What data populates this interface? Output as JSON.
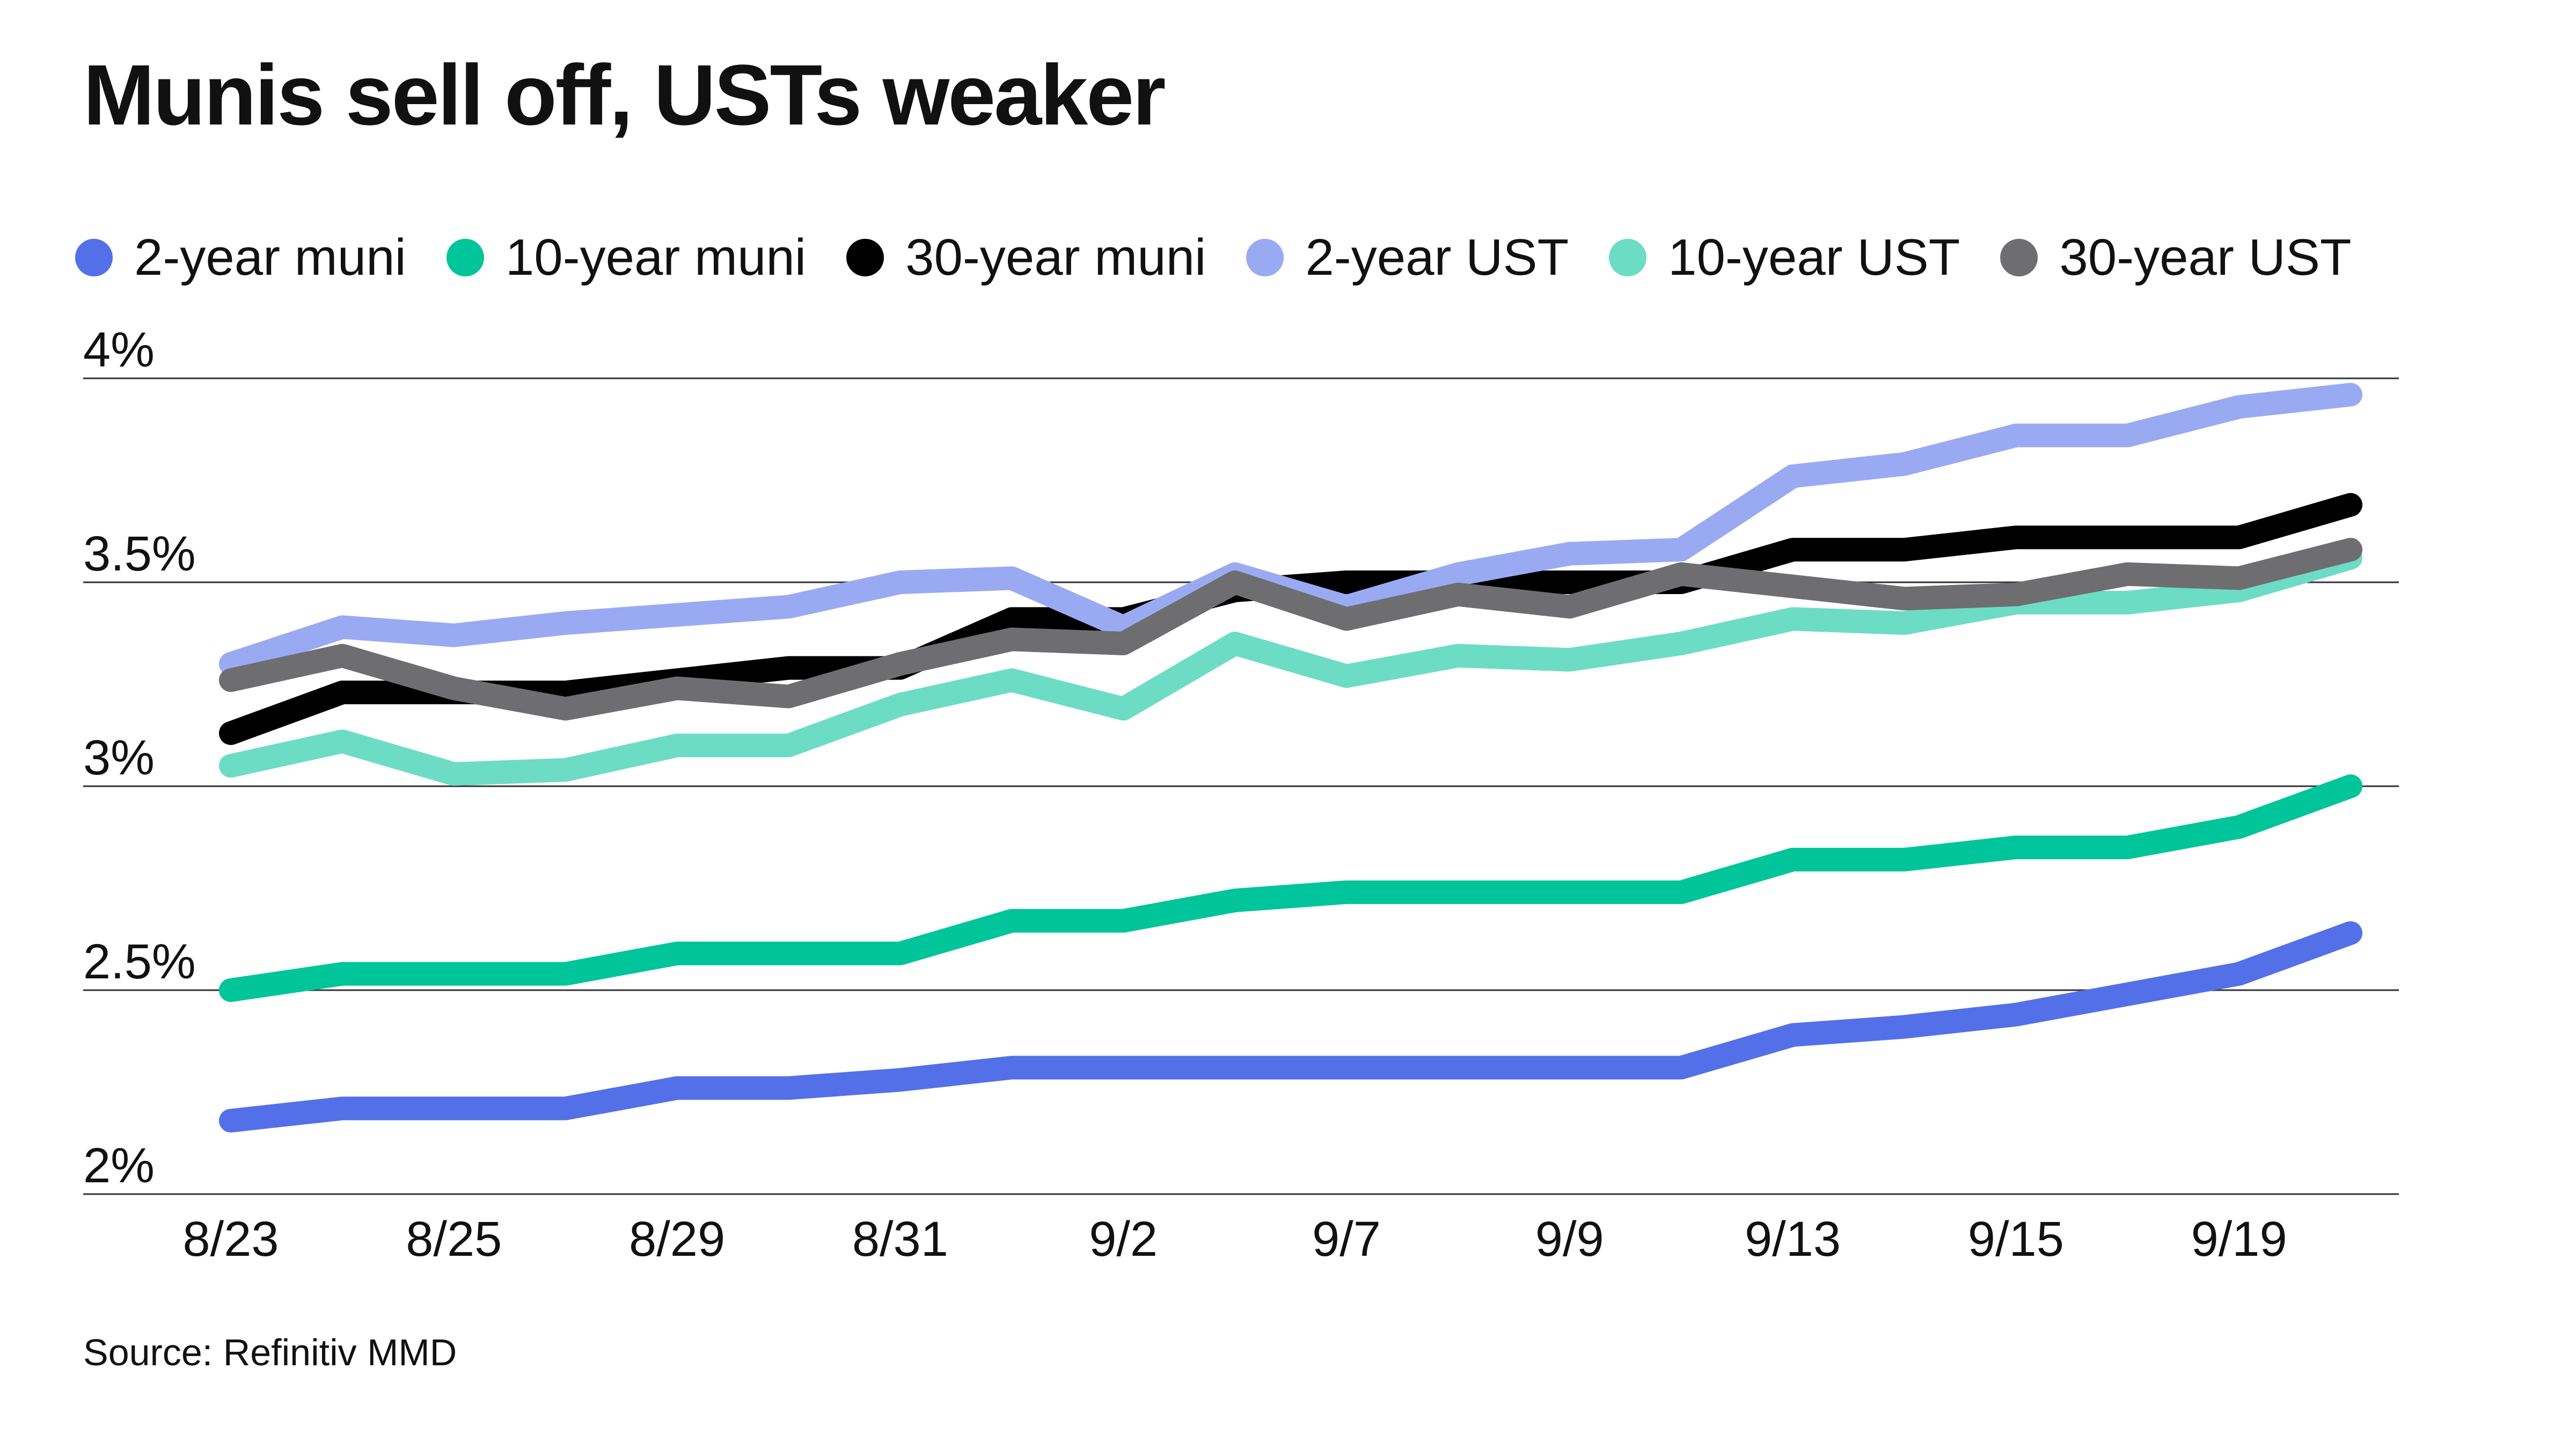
{
  "title": "Munis sell off, USTs weaker",
  "source": "Source: Refinitiv MMD",
  "colors": {
    "grid": "#333333",
    "text": "#111111"
  },
  "chart_data": {
    "type": "line",
    "title": "Munis sell off, USTs weaker",
    "xlabel": "",
    "ylabel": "",
    "ylim": [
      2,
      4
    ],
    "yticks": [
      {
        "value": 2,
        "label": "2%"
      },
      {
        "value": 2.5,
        "label": "2.5%"
      },
      {
        "value": 3,
        "label": "3%"
      },
      {
        "value": 3.5,
        "label": "3.5%"
      },
      {
        "value": 4,
        "label": "4%"
      }
    ],
    "xticks": [
      {
        "index": 0,
        "label": "8/23"
      },
      {
        "index": 2,
        "label": "8/25"
      },
      {
        "index": 4,
        "label": "8/29"
      },
      {
        "index": 6,
        "label": "8/31"
      },
      {
        "index": 8,
        "label": "9/2"
      },
      {
        "index": 10,
        "label": "9/7"
      },
      {
        "index": 12,
        "label": "9/9"
      },
      {
        "index": 14,
        "label": "9/13"
      },
      {
        "index": 16,
        "label": "9/15"
      },
      {
        "index": 18,
        "label": "9/19"
      }
    ],
    "n_points": 20,
    "grid": true,
    "legend_position": "top",
    "series": [
      {
        "name": "2-year muni",
        "color": "#5470e8",
        "values": [
          2.18,
          2.21,
          2.21,
          2.21,
          2.26,
          2.26,
          2.28,
          2.31,
          2.31,
          2.31,
          2.31,
          2.31,
          2.31,
          2.31,
          2.39,
          2.41,
          2.44,
          2.49,
          2.54,
          2.64
        ]
      },
      {
        "name": "10-year muni",
        "color": "#00c49a",
        "values": [
          2.5,
          2.54,
          2.54,
          2.54,
          2.59,
          2.59,
          2.59,
          2.67,
          2.67,
          2.72,
          2.74,
          2.74,
          2.74,
          2.74,
          2.82,
          2.82,
          2.85,
          2.85,
          2.9,
          3.0
        ]
      },
      {
        "name": "30-year muni",
        "color": "#000000",
        "values": [
          3.13,
          3.23,
          3.23,
          3.23,
          3.26,
          3.29,
          3.29,
          3.41,
          3.41,
          3.48,
          3.5,
          3.5,
          3.5,
          3.5,
          3.58,
          3.58,
          3.61,
          3.61,
          3.61,
          3.69
        ]
      },
      {
        "name": "2-year UST",
        "color": "#9aaaf2",
        "values": [
          3.3,
          3.39,
          3.37,
          3.4,
          3.42,
          3.44,
          3.5,
          3.51,
          3.39,
          3.52,
          3.44,
          3.52,
          3.57,
          3.58,
          3.76,
          3.79,
          3.86,
          3.86,
          3.93,
          3.96
        ]
      },
      {
        "name": "10-year UST",
        "color": "#6ddcc4",
        "values": [
          3.05,
          3.11,
          3.03,
          3.04,
          3.1,
          3.1,
          3.2,
          3.26,
          3.19,
          3.35,
          3.27,
          3.32,
          3.31,
          3.35,
          3.41,
          3.4,
          3.45,
          3.45,
          3.48,
          3.56
        ]
      },
      {
        "name": "30-year UST",
        "color": "#6e6e70",
        "values": [
          3.26,
          3.32,
          3.24,
          3.19,
          3.24,
          3.22,
          3.3,
          3.36,
          3.35,
          3.5,
          3.41,
          3.47,
          3.44,
          3.52,
          3.49,
          3.46,
          3.47,
          3.52,
          3.51,
          3.58
        ]
      }
    ]
  }
}
